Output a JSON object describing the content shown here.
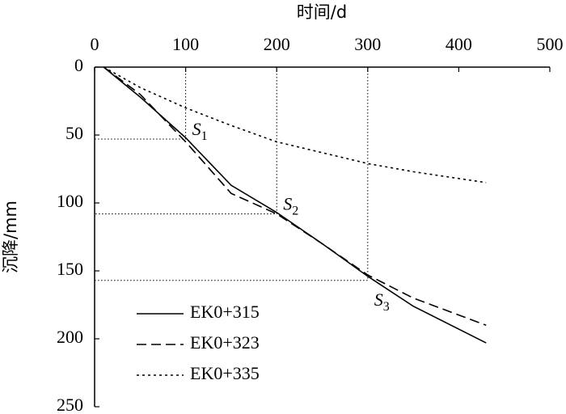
{
  "chart_data": {
    "type": "line",
    "x_label": "时间/d",
    "y_label": "沉降/mm",
    "x_position": "top",
    "y_inverted": true,
    "xlim": [
      0,
      500
    ],
    "xticks": [
      0,
      100,
      200,
      300,
      400,
      500
    ],
    "ylim": [
      0,
      250
    ],
    "yticks": [
      0,
      50,
      100,
      150,
      200,
      250
    ],
    "x": [
      10,
      50,
      100,
      150,
      200,
      250,
      300,
      350,
      430
    ],
    "series": [
      {
        "name": "EK0+315",
        "color": "#000000",
        "style": "solid",
        "values": [
          0,
          22,
          52,
          87,
          107,
          130,
          154,
          176,
          203
        ]
      },
      {
        "name": "EK0+323",
        "color": "#000000",
        "style": "dashed",
        "values": [
          0,
          20,
          55,
          93,
          108,
          130,
          153,
          170,
          190
        ]
      },
      {
        "name": "EK0+335",
        "color": "#000000",
        "style": "dotted",
        "values": [
          0,
          15,
          30,
          43,
          55,
          63,
          71,
          77,
          85
        ]
      }
    ],
    "annotations": [
      {
        "label": "S",
        "sub": "1",
        "x": 100,
        "y": 53
      },
      {
        "label": "S",
        "sub": "2",
        "x": 200,
        "y": 108
      },
      {
        "label": "S",
        "sub": "3",
        "x": 300,
        "y": 157
      }
    ],
    "legend": "lower left"
  }
}
